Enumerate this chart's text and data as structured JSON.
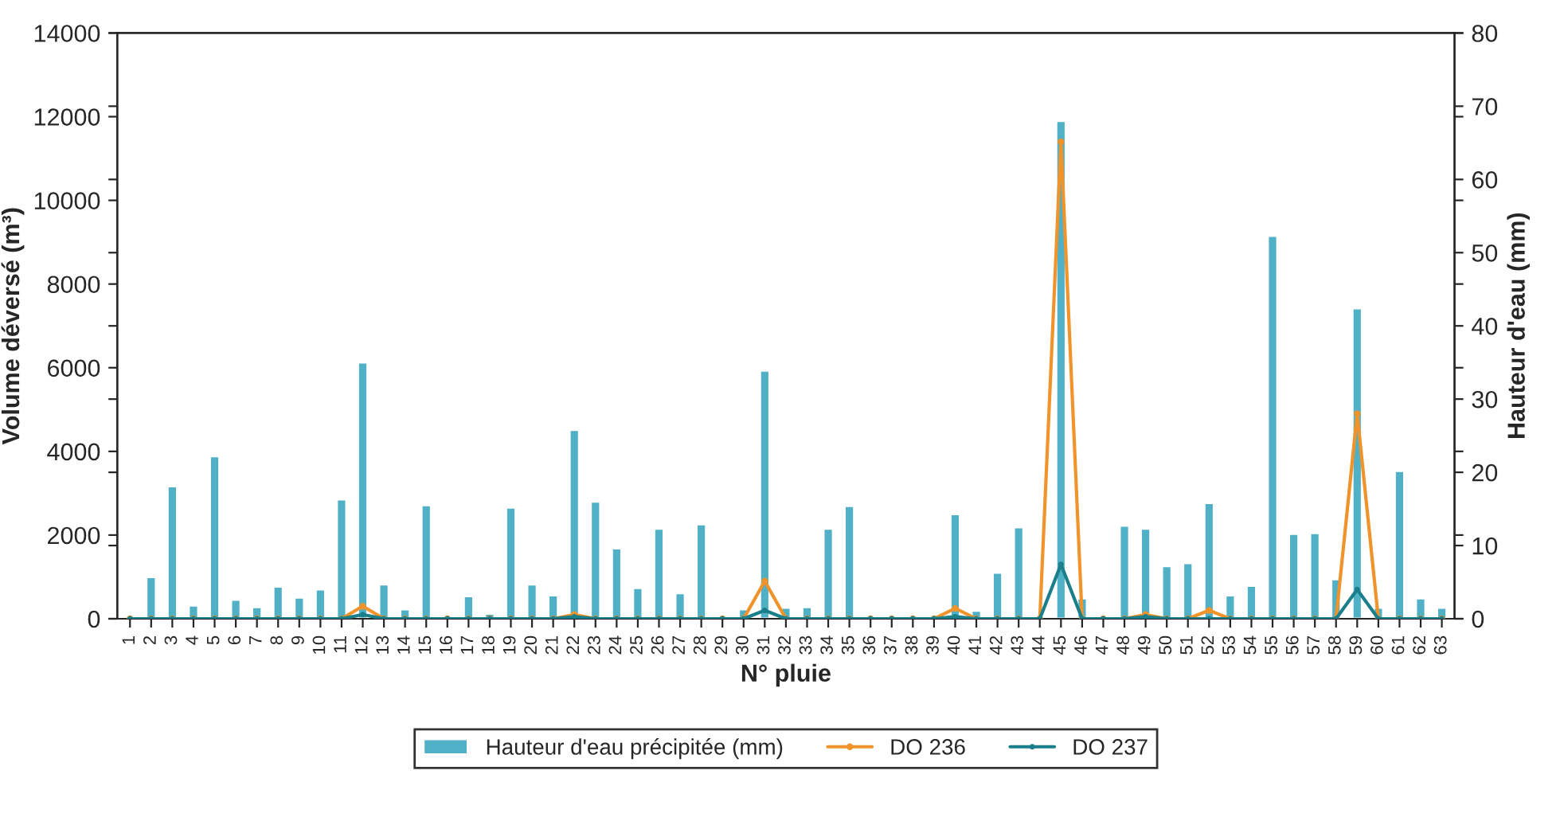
{
  "chart_data": {
    "type": "bar",
    "xlabel": "N° pluie",
    "ylabel": "Volume déversé (m³)",
    "y2label": "Hauteur d'eau (mm)",
    "categories": [
      "1",
      "2",
      "3",
      "4",
      "5",
      "6",
      "7",
      "8",
      "9",
      "10",
      "11",
      "12",
      "13",
      "14",
      "15",
      "16",
      "17",
      "18",
      "19",
      "20",
      "21",
      "22",
      "23",
      "24",
      "25",
      "26",
      "27",
      "28",
      "29",
      "30",
      "31",
      "32",
      "33",
      "34",
      "35",
      "36",
      "37",
      "38",
      "39",
      "40",
      "41",
      "42",
      "43",
      "44",
      "45",
      "46",
      "47",
      "48",
      "49",
      "50",
      "51",
      "52",
      "53",
      "54",
      "55",
      "56",
      "57",
      "58",
      "59",
      "60",
      "61",
      "62",
      "63"
    ],
    "series": [
      {
        "name": "Hauteur d'eau précipitée (mm)",
        "axis": "y2",
        "color": "#4fb0c6",
        "values": [
          0.3,
          5.7,
          18.1,
          1.8,
          22.2,
          2.6,
          1.6,
          4.4,
          2.9,
          4.0,
          16.3,
          35.0,
          4.7,
          1.3,
          15.5,
          0.1,
          3.1,
          0.7,
          15.2,
          4.7,
          3.2,
          25.8,
          16.0,
          9.6,
          4.2,
          12.3,
          3.5,
          12.9,
          null,
          1.3,
          33.9,
          1.5,
          1.6,
          12.3,
          15.4,
          null,
          null,
          null,
          null,
          14.3,
          1.1,
          6.3,
          12.5,
          null,
          68.0,
          2.8,
          null,
          12.7,
          12.3,
          7.2,
          7.6,
          15.8,
          3.2,
          4.5,
          52.3,
          11.6,
          11.7,
          5.4,
          42.4,
          1.5,
          20.2,
          2.8,
          1.5
        ]
      },
      {
        "name": "DO 236",
        "type": "line",
        "color": "#f0932b",
        "marker": "circle",
        "values": [
          0,
          0,
          0,
          0,
          0,
          0,
          0,
          0,
          0,
          0,
          0,
          300,
          0,
          0,
          0,
          0,
          0,
          0,
          0,
          0,
          0,
          100,
          0,
          0,
          0,
          0,
          0,
          0,
          0,
          0,
          900,
          0,
          0,
          0,
          0,
          0,
          0,
          0,
          0,
          250,
          0,
          0,
          0,
          0,
          11400,
          0,
          0,
          0,
          100,
          0,
          0,
          200,
          0,
          0,
          0,
          0,
          0,
          0,
          4900,
          0,
          0,
          0,
          0
        ]
      },
      {
        "name": "DO 237",
        "type": "line",
        "color": "#1a7f8a",
        "marker": "circle",
        "values": [
          0,
          0,
          0,
          0,
          0,
          0,
          0,
          0,
          0,
          0,
          0,
          100,
          0,
          0,
          0,
          0,
          0,
          0,
          0,
          0,
          0,
          50,
          0,
          0,
          0,
          0,
          0,
          0,
          0,
          0,
          200,
          0,
          0,
          0,
          0,
          0,
          0,
          0,
          0,
          50,
          0,
          0,
          0,
          0,
          1300,
          0,
          0,
          0,
          50,
          0,
          0,
          0,
          0,
          0,
          0,
          0,
          0,
          0,
          700,
          0,
          0,
          0,
          0
        ]
      }
    ],
    "ylim": [
      0,
      14000
    ],
    "yticks": [
      0,
      2000,
      4000,
      6000,
      8000,
      10000,
      12000,
      14000
    ],
    "y2lim": [
      0,
      80
    ],
    "y2ticks": [
      0,
      10,
      20,
      30,
      40,
      50,
      60,
      70,
      80
    ],
    "grid": false,
    "legend": "bottom"
  }
}
